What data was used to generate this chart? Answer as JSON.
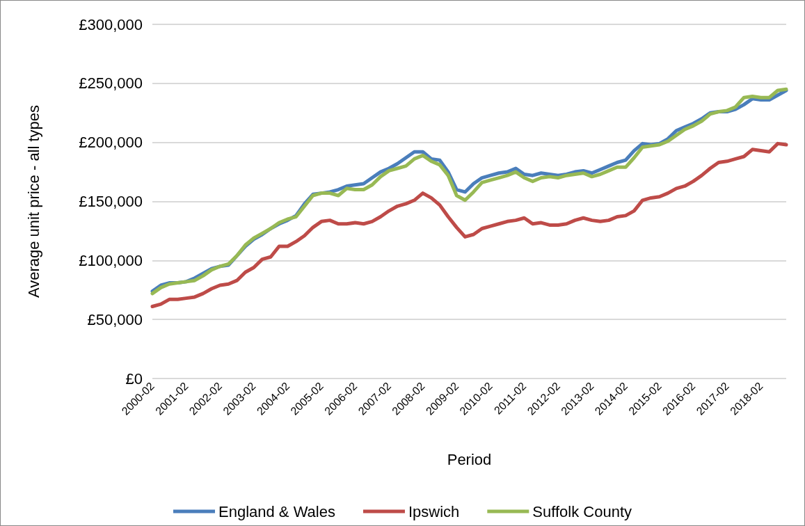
{
  "chart_data": {
    "type": "line",
    "xlabel": "Period",
    "ylabel": "Average unit price - all types",
    "categories": [
      "2000-02",
      null,
      null,
      null,
      "2001-02",
      null,
      null,
      null,
      "2002-02",
      null,
      null,
      null,
      "2003-02",
      null,
      null,
      null,
      "2004-02",
      null,
      null,
      null,
      "2005-02",
      null,
      null,
      null,
      "2006-02",
      null,
      null,
      null,
      "2007-02",
      null,
      null,
      null,
      "2008-02",
      null,
      null,
      null,
      "2009-02",
      null,
      null,
      null,
      "2010-02",
      null,
      null,
      null,
      "2011-02",
      null,
      null,
      null,
      "2012-02",
      null,
      null,
      null,
      "2013-02",
      null,
      null,
      null,
      "2014-02",
      null,
      null,
      null,
      "2015-02",
      null,
      null,
      null,
      "2016-02",
      null,
      null,
      null,
      "2017-02",
      null,
      null,
      null,
      "2018-02",
      null,
      null,
      null
    ],
    "series": [
      {
        "name": "England & Wales",
        "color": "#4a7ebb",
        "values": [
          74000,
          79000,
          81000,
          81000,
          82000,
          85000,
          89000,
          93000,
          95000,
          96000,
          104000,
          112000,
          118000,
          122000,
          127000,
          131000,
          134000,
          138000,
          148000,
          156000,
          157000,
          158000,
          160000,
          163000,
          164000,
          165000,
          170000,
          175000,
          178000,
          182000,
          187000,
          192000,
          192000,
          186000,
          185000,
          175000,
          160000,
          158000,
          165000,
          170000,
          172000,
          174000,
          175000,
          178000,
          173000,
          172000,
          174000,
          173000,
          172000,
          173000,
          175000,
          176000,
          174000,
          177000,
          180000,
          183000,
          185000,
          193000,
          199000,
          198000,
          199000,
          203000,
          210000,
          213000,
          216000,
          220000,
          225000,
          226000,
          226000,
          228000,
          232000,
          237000,
          236000,
          236000,
          240000,
          244000
        ]
      },
      {
        "name": "Ipswich",
        "color": "#be4b48",
        "values": [
          61000,
          63000,
          67000,
          67000,
          68000,
          69000,
          72000,
          76000,
          79000,
          80000,
          83000,
          90000,
          94000,
          101000,
          103000,
          112000,
          112000,
          116000,
          121000,
          128000,
          133000,
          134000,
          131000,
          131000,
          132000,
          131000,
          133000,
          137000,
          142000,
          146000,
          148000,
          151000,
          157000,
          153000,
          147000,
          137000,
          128000,
          120000,
          122000,
          127000,
          129000,
          131000,
          133000,
          134000,
          136000,
          131000,
          132000,
          130000,
          130000,
          131000,
          134000,
          136000,
          134000,
          133000,
          134000,
          137000,
          138000,
          142000,
          151000,
          153000,
          154000,
          157000,
          161000,
          163000,
          167000,
          172000,
          178000,
          183000,
          184000,
          186000,
          188000,
          194000,
          193000,
          192000,
          199000,
          198000
        ]
      },
      {
        "name": "Suffolk County",
        "color": "#98b954",
        "values": [
          72000,
          77000,
          80000,
          81000,
          82000,
          83000,
          87000,
          92000,
          95000,
          97000,
          104000,
          113000,
          119000,
          123000,
          127000,
          132000,
          135000,
          137000,
          146000,
          155000,
          157000,
          157000,
          155000,
          161000,
          160000,
          160000,
          164000,
          171000,
          176000,
          178000,
          180000,
          186000,
          189000,
          184000,
          181000,
          172000,
          155000,
          151000,
          158000,
          166000,
          168000,
          170000,
          172000,
          175000,
          170000,
          167000,
          170000,
          171000,
          170000,
          172000,
          173000,
          174000,
          171000,
          173000,
          176000,
          179000,
          179000,
          187000,
          196000,
          197000,
          198000,
          201000,
          206000,
          211000,
          214000,
          218000,
          224000,
          226000,
          227000,
          230000,
          238000,
          239000,
          238000,
          238000,
          244000,
          245000
        ]
      }
    ],
    "ylim": [
      0,
      300000
    ],
    "yticks": [
      {
        "value": 0,
        "label": "£0"
      },
      {
        "value": 50000,
        "label": "£50,000"
      },
      {
        "value": 100000,
        "label": "£100,000"
      },
      {
        "value": 150000,
        "label": "£150,000"
      },
      {
        "value": 200000,
        "label": "£200,000"
      },
      {
        "value": 250000,
        "label": "£250,000"
      },
      {
        "value": 300000,
        "label": "£300,000"
      }
    ],
    "grid": "y",
    "legend": "bottom",
    "marker": "none",
    "line_style": "solid"
  }
}
